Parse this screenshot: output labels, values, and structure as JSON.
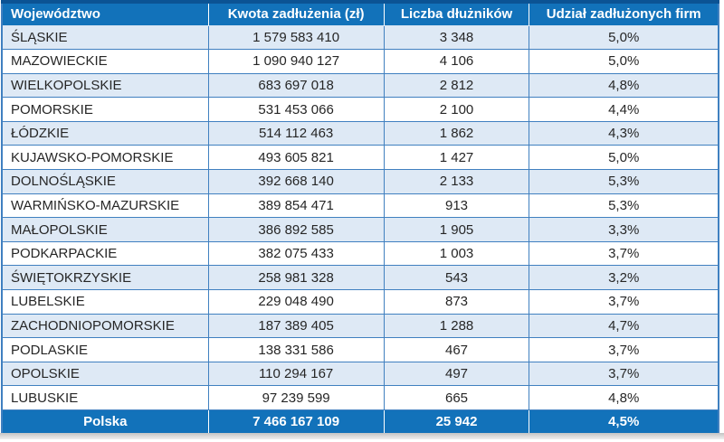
{
  "chart_data": {
    "type": "table",
    "columns": [
      "Województwo",
      "Kwota zadłużenia (zł)",
      "Liczba dłużników",
      "Udział zadłużonych firm"
    ],
    "rows": [
      [
        "ŚLĄSKIE",
        "1 579 583 410",
        "3 348",
        "5,0%"
      ],
      [
        "MAZOWIECKIE",
        "1 090 940 127",
        "4 106",
        "5,0%"
      ],
      [
        "WIELKOPOLSKIE",
        "683 697 018",
        "2 812",
        "4,8%"
      ],
      [
        "POMORSKIE",
        "531 453 066",
        "2 100",
        "4,4%"
      ],
      [
        "ŁÓDZKIE",
        "514 112 463",
        "1 862",
        "4,3%"
      ],
      [
        "KUJAWSKO-POMORSKIE",
        "493 605 821",
        "1 427",
        "5,0%"
      ],
      [
        "DOLNOŚLĄSKIE",
        "392 668 140",
        "2 133",
        "5,3%"
      ],
      [
        "WARMIŃSKO-MAZURSKIE",
        "389 854 471",
        "913",
        "5,3%"
      ],
      [
        "MAŁOPOLSKIE",
        "386 892 585",
        "1 905",
        "3,3%"
      ],
      [
        "PODKARPACKIE",
        "382 075 433",
        "1 003",
        "3,7%"
      ],
      [
        "ŚWIĘTOKRZYSKIE",
        "258 981 328",
        "543",
        "3,2%"
      ],
      [
        "LUBELSKIE",
        "229 048 490",
        "873",
        "3,7%"
      ],
      [
        "ZACHODNIOPOMORSKIE",
        "187 389 405",
        "1 288",
        "4,7%"
      ],
      [
        "PODLASKIE",
        "138 331 586",
        "467",
        "3,7%"
      ],
      [
        "OPOLSKIE",
        "110 294 167",
        "497",
        "3,7%"
      ],
      [
        "LUBUSKIE",
        "97 239 599",
        "665",
        "4,8%"
      ]
    ],
    "footer": [
      "Polska",
      "7 466 167 109",
      "25 942",
      "4,5%"
    ],
    "layout": {
      "banded_rows": true,
      "first_column_align": "left",
      "other_columns_align": "center"
    }
  },
  "colors": {
    "header_bg": "#1272BA",
    "footer_bg": "#1272BA",
    "top_border": "#0B5394",
    "banded_row_bg": "#DEE9F5",
    "row_bg": "#FFFFFF",
    "grid_border": "#4080C0",
    "header_text": "#FFFFFF",
    "body_text": "#262626"
  }
}
